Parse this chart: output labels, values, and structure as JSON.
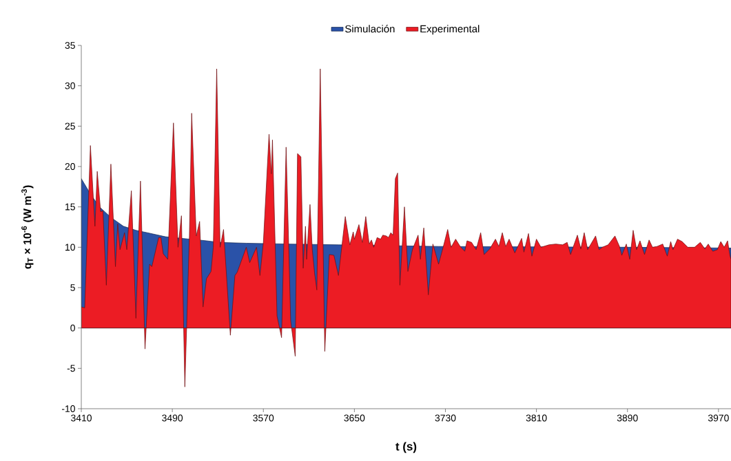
{
  "chart_data": {
    "type": "area",
    "xlabel": "t (s)",
    "ylabel": "q$_{T}$ × 10$^{-6}$ (W m$^{-3}$)",
    "xlim": [
      3410,
      3981
    ],
    "ylim": [
      -10,
      35
    ],
    "xticks": [
      3410,
      3490,
      3570,
      3650,
      3730,
      3810,
      3890,
      3970
    ],
    "yticks": [
      -10,
      -5,
      0,
      5,
      10,
      15,
      20,
      25,
      30,
      35
    ],
    "grid": false,
    "legend": "top",
    "series": [
      {
        "name": "Simulación",
        "color": "#2a52a8",
        "x": [
          3410,
          3418,
          3426,
          3436,
          3447,
          3458,
          3468,
          3484,
          3520,
          3531,
          3555,
          3592,
          3636,
          3724,
          3892,
          3981
        ],
        "values": [
          18.5,
          16.6,
          15.0,
          13.7,
          12.6,
          12.1,
          11.8,
          11.3,
          10.8,
          10.6,
          10.5,
          10.4,
          10.3,
          10.1,
          10.0,
          9.9
        ]
      },
      {
        "name": "Experimental",
        "color": "#ec1c24",
        "x": [
          3410,
          3413,
          3418,
          3422,
          3424,
          3427,
          3429,
          3432,
          3436,
          3440,
          3442,
          3444,
          3448,
          3450,
          3454,
          3458,
          3462,
          3466,
          3470,
          3472,
          3478,
          3480,
          3482,
          3486,
          3491,
          3495,
          3498,
          3501,
          3505,
          3507,
          3511,
          3514,
          3517,
          3520,
          3524,
          3526,
          3529,
          3532,
          3535,
          3541,
          3545,
          3547,
          3555,
          3558,
          3564,
          3567,
          3570,
          3575,
          3577,
          3578,
          3582,
          3586,
          3590,
          3594,
          3598,
          3600,
          3603,
          3605,
          3607,
          3608,
          3611,
          3613,
          3615,
          3617,
          3620,
          3624,
          3628,
          3632,
          3636,
          3642,
          3646,
          3649,
          3650,
          3654,
          3657,
          3660,
          3663,
          3665,
          3667,
          3670,
          3673,
          3675,
          3678,
          3680,
          3682,
          3684,
          3686,
          3688,
          3690,
          3694,
          3697,
          3701,
          3706,
          3708,
          3711,
          3715,
          3719,
          3724,
          3728,
          3732,
          3735,
          3739,
          3743,
          3747,
          3749,
          3753,
          3757,
          3761,
          3764,
          3769,
          3774,
          3777,
          3780,
          3783,
          3786,
          3791,
          3797,
          3799,
          3803,
          3806,
          3810,
          3814,
          3821,
          3827,
          3833,
          3837,
          3840,
          3846,
          3849,
          3852,
          3855,
          3862,
          3865,
          3868,
          3873,
          3879,
          3883,
          3885,
          3889,
          3892,
          3895,
          3898,
          3901,
          3905,
          3909,
          3912,
          3916,
          3921,
          3925,
          3928,
          3930,
          3934,
          3938,
          3943,
          3949,
          3954,
          3958,
          3961,
          3965,
          3969,
          3972,
          3975,
          3978,
          3980,
          3981
        ],
        "values": [
          2.6,
          2.5,
          22.6,
          12.6,
          19.4,
          14.4,
          14.5,
          5.3,
          20.3,
          7.6,
          12.9,
          9.7,
          11.8,
          9.7,
          17.0,
          1.2,
          18.2,
          -2.6,
          7.9,
          7.6,
          11.2,
          11.2,
          9.2,
          8.5,
          25.4,
          10.0,
          13.9,
          -7.3,
          11.4,
          26.6,
          11.4,
          13.2,
          2.6,
          6.1,
          7.0,
          10.0,
          32.1,
          10.0,
          12.2,
          -0.9,
          6.5,
          6.9,
          10.0,
          8.1,
          10.0,
          6.5,
          10.6,
          24.0,
          19.1,
          23.3,
          1.5,
          -1.2,
          22.4,
          0.9,
          -3.5,
          21.6,
          21.2,
          7.4,
          12.6,
          8.5,
          15.3,
          9.7,
          6.8,
          4.7,
          32.1,
          -2.9,
          9.1,
          9.0,
          6.5,
          13.8,
          10.3,
          11.9,
          11.0,
          12.8,
          10.6,
          13.8,
          10.4,
          10.9,
          10.0,
          11.2,
          11.0,
          11.5,
          11.4,
          11.2,
          11.8,
          11.5,
          18.5,
          19.2,
          5.3,
          15.0,
          7.0,
          9.7,
          11.5,
          8.5,
          12.4,
          4.1,
          10.4,
          7.9,
          10.0,
          12.2,
          10.0,
          11.0,
          10.1,
          9.5,
          10.8,
          10.6,
          9.7,
          11.8,
          9.1,
          9.8,
          11.0,
          10.1,
          11.8,
          10.1,
          11.0,
          9.3,
          11.1,
          9.4,
          11.7,
          8.9,
          11.0,
          10.0,
          10.3,
          10.4,
          10.3,
          10.6,
          9.1,
          11.5,
          9.8,
          11.8,
          9.7,
          11.4,
          9.7,
          10.0,
          10.3,
          11.4,
          10.1,
          9.0,
          10.4,
          8.5,
          12.1,
          9.7,
          10.8,
          9.1,
          10.9,
          10.0,
          10.1,
          10.4,
          8.9,
          10.7,
          9.7,
          11.0,
          10.7,
          10.0,
          10.0,
          10.6,
          9.8,
          10.4,
          9.5,
          9.7,
          10.7,
          10.0,
          10.8,
          9.0,
          8.5
        ]
      }
    ]
  }
}
